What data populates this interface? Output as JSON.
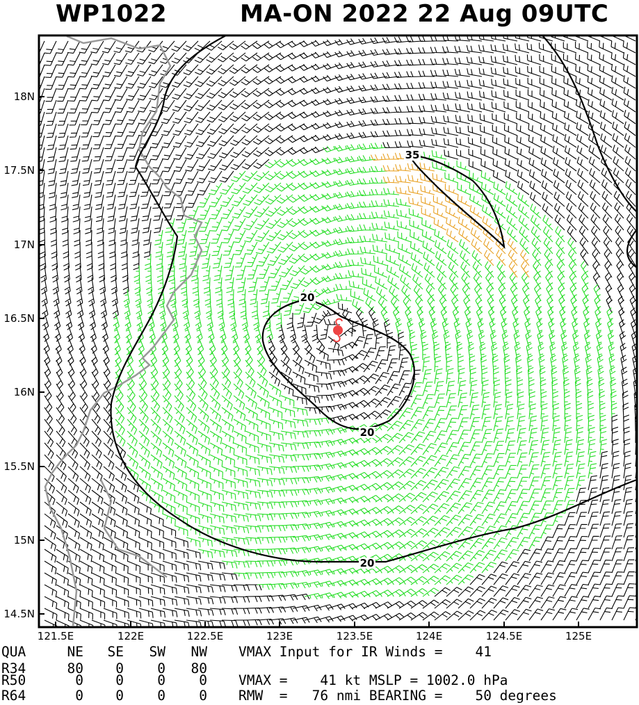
{
  "header": {
    "storm_id": "WP1022",
    "title": "MA-ON 2022 22 Aug 09UTC"
  },
  "axes": {
    "y_ticks": [
      "18N",
      "17.5N",
      "17N",
      "16.5N",
      "16N",
      "15.5N",
      "15N",
      "14.5N"
    ],
    "x_ticks": [
      "121.5E",
      "122E",
      "122.5E",
      "123E",
      "123.5E",
      "124E",
      "124.5E",
      "125E"
    ]
  },
  "chart_data": {
    "type": "wind_barb_map",
    "lon_range": [
      121.5,
      125.5
    ],
    "lat_range": [
      14.5,
      18.3
    ],
    "center": {
      "lon": 123.4,
      "lat": 16.4
    },
    "contour_labels": [
      "20",
      "20",
      "20",
      "35"
    ],
    "colors": {
      "barb_below_20": "#000000",
      "barb_20_to_34": "#22dd22",
      "barb_34_plus": "#e8a020",
      "center_marker": "#ee4444",
      "coastline": "#999999",
      "contour": "#000000"
    }
  },
  "table": {
    "headers": [
      "QUA",
      "NE",
      "SE",
      "SW",
      "NW"
    ],
    "rows": [
      {
        "label": "R34",
        "values": [
          "80",
          "0",
          "0",
          "80"
        ]
      },
      {
        "label": "R50",
        "values": [
          "0",
          "0",
          "0",
          "0"
        ]
      },
      {
        "label": "R64",
        "values": [
          "0",
          "0",
          "0",
          "0"
        ]
      }
    ]
  },
  "stats": {
    "line1": "VMAX Input for IR Winds =    41",
    "line2": "VMAX =    41 kt MSLP = 1002.0 hPa",
    "line3": "RMW  =   76 nmi BEARING =    50 degrees"
  }
}
